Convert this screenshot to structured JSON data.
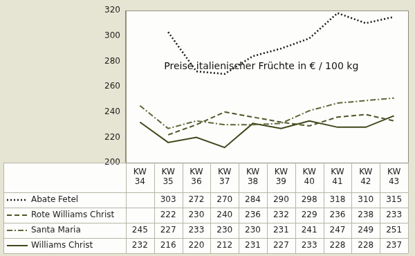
{
  "chart_data": {
    "type": "line",
    "title": "Preise italienischer Früchte in € / 100 kg",
    "categories": [
      "KW 34",
      "KW 35",
      "KW 36",
      "KW 37",
      "KW 38",
      "KW 39",
      "KW 40",
      "KW 41",
      "KW 42",
      "KW 43"
    ],
    "series": [
      {
        "name": "Abate Fetel",
        "color": "#1a1a1a",
        "line_style": "dotted",
        "values": [
          null,
          303,
          272,
          270,
          284,
          290,
          298,
          318,
          310,
          315
        ]
      },
      {
        "name": "Rote Williams Christ",
        "color": "#4d5526",
        "line_style": "dashed",
        "values": [
          null,
          222,
          230,
          240,
          236,
          232,
          229,
          236,
          238,
          233
        ]
      },
      {
        "name": "Santa Maria",
        "color": "#5e6636",
        "line_style": "dashdot",
        "values": [
          245,
          227,
          233,
          230,
          230,
          231,
          241,
          247,
          249,
          251
        ]
      },
      {
        "name": "Williams Christ",
        "color": "#3e4719",
        "line_style": "solid",
        "values": [
          232,
          216,
          220,
          212,
          231,
          227,
          233,
          228,
          228,
          237
        ]
      }
    ],
    "ylim": [
      200,
      320
    ],
    "yticks": [
      200,
      220,
      240,
      260,
      280,
      300,
      320
    ],
    "grid": false
  }
}
